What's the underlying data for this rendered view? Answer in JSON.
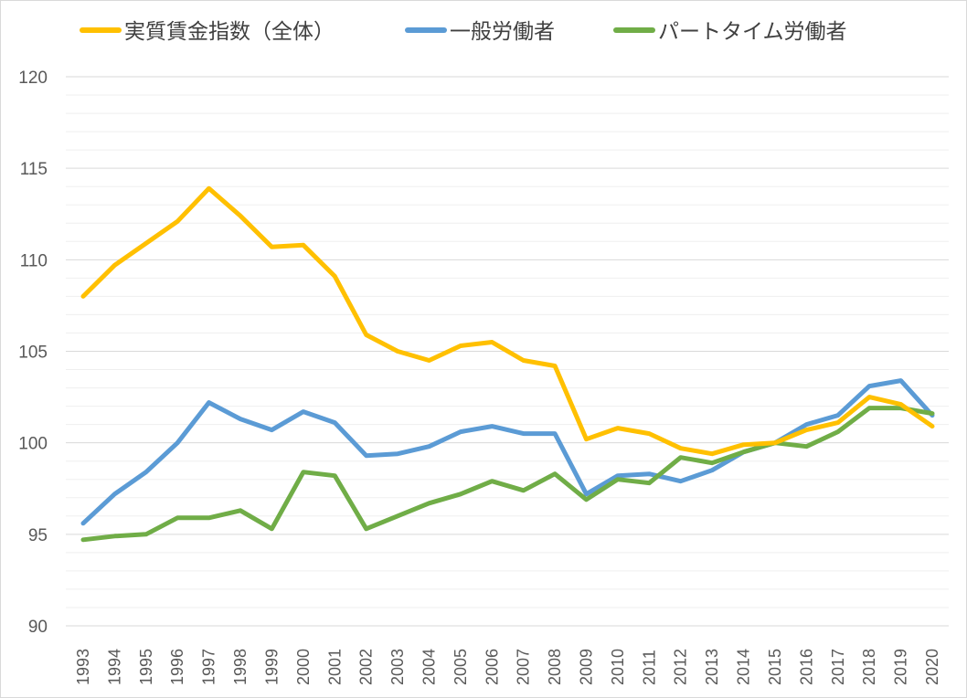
{
  "chart_data": {
    "type": "line",
    "title": "",
    "xlabel": "",
    "ylabel": "",
    "ylim": [
      90,
      120
    ],
    "y_major_step": 5,
    "y_minor_step": 1,
    "grid": true,
    "legend_position": "top",
    "x": [
      "1993",
      "1994",
      "1995",
      "1996",
      "1997",
      "1998",
      "1999",
      "2000",
      "2001",
      "2002",
      "2003",
      "2004",
      "2005",
      "2006",
      "2007",
      "2008",
      "2009",
      "2010",
      "2011",
      "2012",
      "2013",
      "2014",
      "2015",
      "2016",
      "2017",
      "2018",
      "2019",
      "2020"
    ],
    "y_ticks": [
      "90",
      "95",
      "100",
      "105",
      "110",
      "115",
      "120"
    ],
    "series": [
      {
        "name": "実質賃金指数（全体）",
        "color": "#FFC000",
        "values": [
          108.0,
          109.7,
          110.9,
          112.1,
          113.9,
          112.4,
          110.7,
          110.8,
          109.1,
          105.9,
          105.0,
          104.5,
          105.3,
          105.5,
          104.5,
          104.2,
          100.2,
          100.8,
          100.5,
          99.7,
          99.4,
          99.9,
          100.0,
          100.7,
          101.1,
          102.5,
          102.1,
          100.9
        ]
      },
      {
        "name": "一般労働者",
        "color": "#5B9BD5",
        "values": [
          95.6,
          97.2,
          98.4,
          100.0,
          102.2,
          101.3,
          100.7,
          101.7,
          101.1,
          99.3,
          99.4,
          99.8,
          100.6,
          100.9,
          100.5,
          100.5,
          97.2,
          98.2,
          98.3,
          97.9,
          98.5,
          99.5,
          100.0,
          101.0,
          101.5,
          103.1,
          103.4,
          101.5
        ]
      },
      {
        "name": "パートタイム労働者",
        "color": "#70AD47",
        "values": [
          94.7,
          94.9,
          95.0,
          95.9,
          95.9,
          96.3,
          95.3,
          98.4,
          98.2,
          95.3,
          96.0,
          96.7,
          97.2,
          97.9,
          97.4,
          98.3,
          96.9,
          98.0,
          97.8,
          99.2,
          98.9,
          99.5,
          100.0,
          99.8,
          100.6,
          101.9,
          101.9,
          101.6
        ]
      }
    ]
  }
}
